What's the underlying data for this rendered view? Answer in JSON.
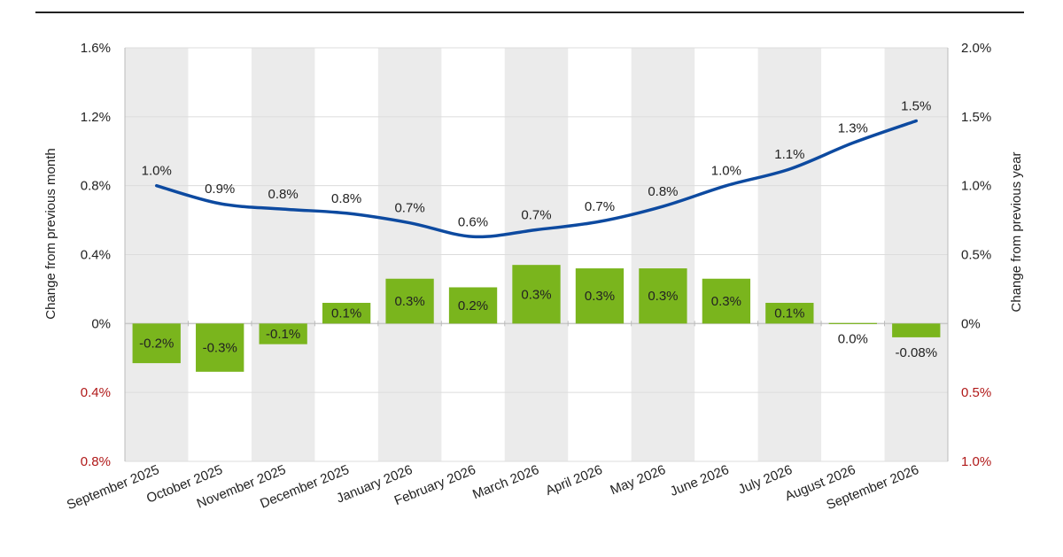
{
  "chart_data": {
    "type": "bar",
    "categories": [
      "September 2025",
      "October 2025",
      "November 2025",
      "December 2025",
      "January 2026",
      "February 2026",
      "March 2026",
      "April 2026",
      "May 2026",
      "June 2026",
      "July 2026",
      "August 2026",
      "September 2026"
    ],
    "series": [
      {
        "type": "bar",
        "axis": "left",
        "values": [
          -0.23,
          -0.28,
          -0.12,
          0.12,
          0.26,
          0.21,
          0.34,
          0.32,
          0.32,
          0.26,
          0.12,
          0.0,
          -0.08
        ],
        "labels": [
          "-0.2%",
          "-0.3%",
          "-0.1%",
          "0.1%",
          "0.3%",
          "0.2%",
          "0.3%",
          "0.3%",
          "0.3%",
          "0.3%",
          "0.1%",
          "0.0%",
          "-0.08%"
        ],
        "color": "#7ab51d"
      },
      {
        "type": "line",
        "axis": "right",
        "values": [
          1.0,
          0.87,
          0.83,
          0.8,
          0.73,
          0.63,
          0.68,
          0.74,
          0.85,
          1.0,
          1.12,
          1.31,
          1.47
        ],
        "labels": [
          "1.0%",
          "0.9%",
          "0.8%",
          "0.8%",
          "0.7%",
          "0.6%",
          "0.7%",
          "0.7%",
          "0.8%",
          "1.0%",
          "1.1%",
          "1.3%",
          "1.5%"
        ],
        "color": "#0d4aa0"
      }
    ],
    "left_axis": {
      "label": "Change from previous month",
      "ylim": [
        -0.8,
        1.6
      ],
      "ticks": [
        {
          "value": 1.6,
          "label": "1.6%",
          "negative": false
        },
        {
          "value": 1.2,
          "label": "1.2%",
          "negative": false
        },
        {
          "value": 0.8,
          "label": "0.8%",
          "negative": false
        },
        {
          "value": 0.4,
          "label": "0.4%",
          "negative": false
        },
        {
          "value": 0.0,
          "label": "0%",
          "negative": false
        },
        {
          "value": -0.4,
          "label": "0.4%",
          "negative": true
        },
        {
          "value": -0.8,
          "label": "0.8%",
          "negative": true
        }
      ]
    },
    "right_axis": {
      "label": "Change from previous year",
      "ylim": [
        -1.0,
        2.0
      ],
      "ticks": [
        {
          "value": 2.0,
          "label": "2.0%",
          "negative": false
        },
        {
          "value": 1.5,
          "label": "1.5%",
          "negative": false
        },
        {
          "value": 1.0,
          "label": "1.0%",
          "negative": false
        },
        {
          "value": 0.5,
          "label": "0.5%",
          "negative": false
        },
        {
          "value": 0.0,
          "label": "0%",
          "negative": false
        },
        {
          "value": -0.5,
          "label": "0.5%",
          "negative": true
        },
        {
          "value": -1.0,
          "label": "1.0%",
          "negative": true
        }
      ]
    },
    "negative_tick_color": "#b01818",
    "band_color": "#ebebeb",
    "grid": true
  }
}
